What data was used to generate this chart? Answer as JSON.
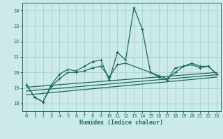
{
  "xlabel": "Humidex (Indice chaleur)",
  "bg_color": "#cceae8",
  "grid_color": "#aad4d0",
  "line_color": "#1a6b5a",
  "xlim": [
    -0.5,
    23.5
  ],
  "ylim": [
    17.5,
    24.5
  ],
  "yticks": [
    18,
    19,
    20,
    21,
    22,
    23,
    24
  ],
  "xticks": [
    0,
    1,
    2,
    3,
    4,
    5,
    6,
    7,
    8,
    9,
    10,
    11,
    12,
    13,
    14,
    15,
    16,
    17,
    18,
    19,
    20,
    21,
    22,
    23
  ],
  "x": [
    0,
    1,
    2,
    3,
    4,
    5,
    6,
    7,
    8,
    9,
    10,
    11,
    12,
    13,
    14,
    15,
    16,
    17,
    18,
    19,
    20,
    21,
    22,
    23
  ],
  "series1": [
    19.2,
    18.4,
    18.1,
    19.2,
    19.9,
    20.2,
    20.1,
    20.4,
    20.7,
    20.8,
    19.5,
    21.3,
    20.8,
    24.2,
    22.8,
    20.0,
    19.7,
    19.5,
    20.3,
    20.4,
    20.6,
    20.4,
    20.4,
    19.9
  ],
  "series2": [
    19.2,
    18.4,
    18.1,
    19.1,
    19.6,
    20.0,
    20.0,
    20.1,
    20.3,
    20.4,
    19.7,
    20.5,
    20.6,
    null,
    null,
    20.0,
    19.8,
    19.6,
    20.0,
    20.4,
    20.5,
    20.3,
    20.4,
    19.9
  ],
  "line3": [
    [
      0,
      23
    ],
    [
      19.05,
      20.0
    ]
  ],
  "line4": [
    [
      0,
      23
    ],
    [
      18.8,
      19.85
    ]
  ],
  "line5": [
    [
      0,
      23
    ],
    [
      18.55,
      19.7
    ]
  ]
}
